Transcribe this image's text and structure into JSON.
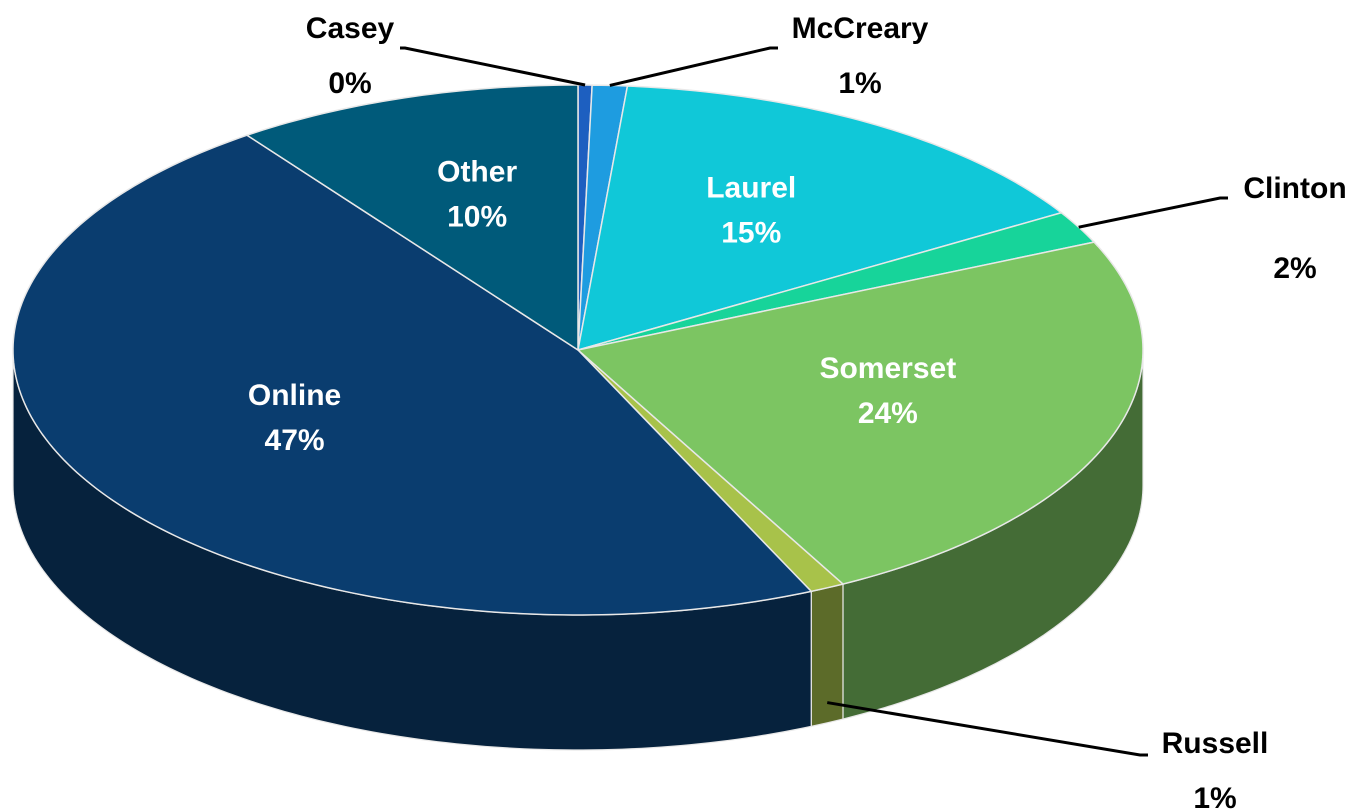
{
  "chart_data": {
    "type": "pie3d",
    "categories": [
      "Casey",
      "McCreary",
      "Laurel",
      "Clinton",
      "Somerset",
      "Russell",
      "Online",
      "Other"
    ],
    "values": [
      0.4,
      1,
      15,
      2,
      24,
      1,
      47,
      10
    ],
    "value_labels": [
      "0%",
      "1%",
      "15%",
      "2%",
      "24%",
      "1%",
      "47%",
      "10%"
    ],
    "colors": [
      "#1d5fc0",
      "#1e9ce0",
      "#10c8d8",
      "#17d49a",
      "#7cc562",
      "#a8c24a",
      "#0a3d6f",
      "#005a7a"
    ]
  }
}
